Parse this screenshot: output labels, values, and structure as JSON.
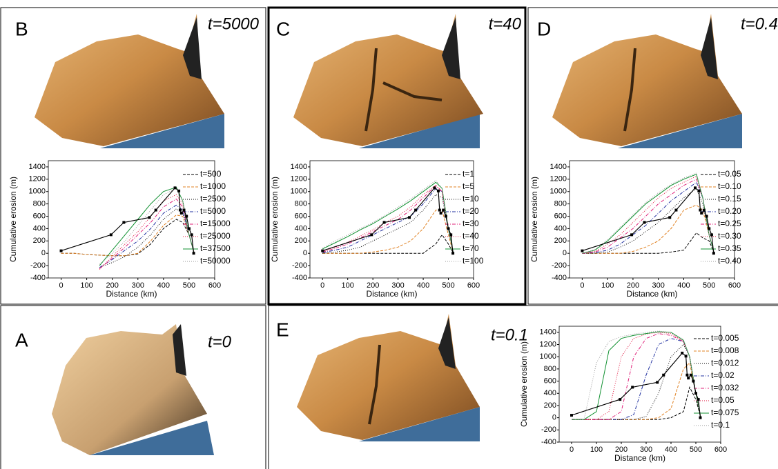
{
  "panels": [
    {
      "label": "B",
      "time": "t=5000"
    },
    {
      "label": "C",
      "time": "t=40"
    },
    {
      "label": "D",
      "time": "t=0.4"
    },
    {
      "label": "A",
      "time": "t=0"
    },
    {
      "label": "E",
      "time": "t=0.1"
    }
  ],
  "chart_data": [
    {
      "type": "line",
      "xlabel": "Distance (km)",
      "ylabel": "Cumulative erosion (m)",
      "xlim": [
        -50,
        600
      ],
      "ylim": [
        -400,
        1500
      ],
      "xticks": [
        0,
        100,
        200,
        300,
        400,
        500,
        600
      ],
      "yticks": [
        -400,
        -200,
        0,
        200,
        400,
        600,
        800,
        1000,
        1200,
        1400
      ],
      "x": [
        0,
        50,
        100,
        150,
        200,
        250,
        300,
        350,
        400,
        450,
        475,
        500,
        520
      ],
      "series": [
        {
          "name": "t=500",
          "color": "#000000",
          "dash": "4,2",
          "values": [
            0,
            0,
            -20,
            -30,
            -40,
            -40,
            -10,
            150,
            400,
            550,
            500,
            300,
            0
          ]
        },
        {
          "name": "t=1000",
          "color": "#e08020",
          "dash": "4,2",
          "values": [
            0,
            0,
            -20,
            -30,
            -40,
            -40,
            0,
            200,
            450,
            620,
            600,
            300,
            0
          ]
        },
        {
          "name": "t=2500",
          "color": "#000000",
          "dash": "1,2",
          "values": [
            null,
            null,
            null,
            -230,
            -150,
            -50,
            100,
            300,
            550,
            720,
            650,
            300,
            0
          ]
        },
        {
          "name": "t=5000",
          "color": "#2030a0",
          "dash": "5,2,1,2",
          "values": [
            null,
            null,
            null,
            -230,
            -100,
            50,
            200,
            400,
            650,
            780,
            700,
            300,
            0
          ]
        },
        {
          "name": "t=15000",
          "color": "#e0207a",
          "dash": "5,2,1,2",
          "values": [
            null,
            null,
            null,
            -250,
            -80,
            100,
            300,
            500,
            750,
            880,
            750,
            300,
            0
          ]
        },
        {
          "name": "t=25000",
          "color": "#e0103a",
          "dash": "1,2",
          "values": [
            null,
            null,
            null,
            -260,
            -50,
            150,
            350,
            600,
            850,
            950,
            800,
            300,
            0
          ]
        },
        {
          "name": "t=37500",
          "color": "#109030",
          "dash": "",
          "values": [
            null,
            null,
            null,
            -200,
            50,
            300,
            550,
            800,
            1000,
            1070,
            850,
            300,
            0
          ]
        },
        {
          "name": "t=50000",
          "color": "#999999",
          "dash": "1,2",
          "values": [
            null,
            null,
            null,
            -180,
            0,
            200,
            450,
            700,
            950,
            1050,
            850,
            300,
            0
          ]
        },
        {
          "color": "#000000",
          "dash": "",
          "marker": "square",
          "x": [
            0,
            195,
            245,
            345,
            370,
            445,
            460,
            465,
            470,
            480,
            490,
            500,
            510,
            518
          ],
          "values": [
            40,
            300,
            500,
            580,
            700,
            1060,
            1010,
            700,
            650,
            700,
            600,
            400,
            300,
            0
          ]
        }
      ]
    },
    {
      "type": "line",
      "xlabel": "Distance (km)",
      "ylabel": "Cumulative erosion (m)",
      "xlim": [
        -50,
        600
      ],
      "ylim": [
        -400,
        1500
      ],
      "xticks": [
        0,
        100,
        200,
        300,
        400,
        500,
        600
      ],
      "yticks": [
        -400,
        -200,
        0,
        200,
        400,
        600,
        800,
        1000,
        1200,
        1400
      ],
      "x": [
        0,
        50,
        100,
        150,
        200,
        250,
        300,
        350,
        400,
        450,
        475,
        500,
        520
      ],
      "series": [
        {
          "name": "t=1",
          "color": "#000000",
          "dash": "4,2",
          "values": [
            0,
            0,
            0,
            0,
            0,
            0,
            0,
            0,
            0,
            150,
            300,
            150,
            0
          ]
        },
        {
          "name": "t=5",
          "color": "#e08020",
          "dash": "4,2",
          "values": [
            0,
            0,
            0,
            0,
            20,
            50,
            100,
            200,
            400,
            700,
            700,
            300,
            0
          ]
        },
        {
          "name": "t=10",
          "color": "#000000",
          "dash": "1,2",
          "values": [
            0,
            20,
            50,
            100,
            200,
            300,
            400,
            500,
            700,
            950,
            900,
            400,
            0
          ]
        },
        {
          "name": "t=20",
          "color": "#2030a0",
          "dash": "5,2,1,2",
          "values": [
            10,
            50,
            100,
            200,
            300,
            400,
            500,
            600,
            800,
            1050,
            1000,
            400,
            0
          ]
        },
        {
          "name": "t=30",
          "color": "#e0207a",
          "dash": "5,2,1,2",
          "values": [
            20,
            80,
            150,
            250,
            350,
            450,
            550,
            700,
            900,
            1100,
            1000,
            400,
            0
          ]
        },
        {
          "name": "t=40",
          "color": "#e0103a",
          "dash": "1,2",
          "values": [
            30,
            100,
            180,
            280,
            380,
            500,
            600,
            750,
            950,
            1100,
            1000,
            400,
            0
          ]
        },
        {
          "name": "t=70",
          "color": "#109030",
          "dash": "",
          "values": [
            70,
            170,
            270,
            380,
            480,
            600,
            720,
            850,
            1000,
            1150,
            1050,
            400,
            0
          ]
        },
        {
          "name": "t=100",
          "color": "#999999",
          "dash": "1,2",
          "values": [
            80,
            200,
            300,
            400,
            500,
            620,
            750,
            880,
            1030,
            1180,
            1050,
            400,
            0
          ]
        },
        {
          "color": "#000000",
          "dash": "",
          "marker": "square",
          "x": [
            0,
            195,
            245,
            345,
            370,
            445,
            460,
            465,
            470,
            480,
            490,
            500,
            510,
            518
          ],
          "values": [
            40,
            300,
            500,
            580,
            700,
            1060,
            1010,
            700,
            650,
            700,
            600,
            400,
            300,
            0
          ]
        }
      ]
    },
    {
      "type": "line",
      "xlabel": "Distance (km)",
      "ylabel": "Cumulative erosion (m)",
      "xlim": [
        -50,
        600
      ],
      "ylim": [
        -400,
        1500
      ],
      "xticks": [
        0,
        100,
        200,
        300,
        400,
        500,
        600
      ],
      "yticks": [
        -400,
        -200,
        0,
        200,
        400,
        600,
        800,
        1000,
        1200,
        1400
      ],
      "x": [
        0,
        50,
        100,
        150,
        200,
        250,
        300,
        350,
        400,
        450,
        475,
        500,
        520
      ],
      "series": [
        {
          "name": "t=0.05",
          "color": "#000000",
          "dash": "4,2",
          "values": [
            0,
            0,
            0,
            0,
            0,
            0,
            0,
            20,
            50,
            330,
            250,
            200,
            0
          ]
        },
        {
          "name": "t=0.10",
          "color": "#e08020",
          "dash": "4,2",
          "values": [
            0,
            0,
            0,
            0,
            30,
            100,
            200,
            400,
            700,
            780,
            700,
            300,
            0
          ]
        },
        {
          "name": "t=0.15",
          "color": "#000000",
          "dash": "1,2",
          "values": [
            0,
            0,
            20,
            100,
            200,
            350,
            500,
            700,
            900,
            1050,
            800,
            300,
            0
          ]
        },
        {
          "name": "t=0.20",
          "color": "#2030a0",
          "dash": "5,2,1,2",
          "values": [
            0,
            10,
            50,
            150,
            300,
            450,
            650,
            850,
            1000,
            1150,
            900,
            300,
            0
          ]
        },
        {
          "name": "t=0.25",
          "color": "#e0207a",
          "dash": "5,2,1,2",
          "values": [
            0,
            20,
            100,
            250,
            400,
            600,
            800,
            950,
            1100,
            1200,
            900,
            300,
            0
          ]
        },
        {
          "name": "t=0.30",
          "color": "#e0103a",
          "dash": "1,2",
          "values": [
            0,
            30,
            150,
            300,
            500,
            700,
            900,
            1050,
            1150,
            1250,
            900,
            300,
            0
          ]
        },
        {
          "name": "t=0.35",
          "color": "#109030",
          "dash": "",
          "values": [
            0,
            50,
            200,
            400,
            600,
            800,
            950,
            1100,
            1200,
            1280,
            900,
            300,
            0
          ]
        },
        {
          "name": "t=0.40",
          "color": "#999999",
          "dash": "1,2",
          "values": [
            0,
            60,
            220,
            420,
            620,
            820,
            980,
            1120,
            1220,
            1300,
            900,
            300,
            0
          ]
        },
        {
          "color": "#000000",
          "dash": "",
          "marker": "square",
          "x": [
            0,
            195,
            245,
            345,
            370,
            445,
            460,
            465,
            470,
            480,
            490,
            500,
            510,
            518
          ],
          "values": [
            40,
            300,
            500,
            580,
            700,
            1060,
            1010,
            700,
            650,
            700,
            600,
            400,
            300,
            0
          ]
        }
      ]
    },
    {
      "type": "line",
      "xlabel": "Distance (km)",
      "ylabel": "Cumulative erosion (m)",
      "xlim": [
        -50,
        600
      ],
      "ylim": [
        -400,
        1500
      ],
      "xticks": [
        0,
        100,
        200,
        300,
        400,
        500,
        600
      ],
      "yticks": [
        -400,
        -200,
        0,
        200,
        400,
        600,
        800,
        1000,
        1200,
        1400
      ],
      "x": [
        0,
        50,
        100,
        150,
        200,
        250,
        300,
        350,
        400,
        450,
        475,
        500,
        520
      ],
      "series": [
        {
          "name": "t=0.005",
          "color": "#000000",
          "dash": "4,2",
          "values": [
            -30,
            -30,
            -30,
            -30,
            -30,
            -30,
            -30,
            -30,
            0,
            100,
            500,
            300,
            0
          ]
        },
        {
          "name": "t=0.008",
          "color": "#e08020",
          "dash": "4,2",
          "values": [
            -30,
            -30,
            -30,
            -30,
            -30,
            -30,
            -30,
            0,
            150,
            800,
            900,
            400,
            0
          ]
        },
        {
          "name": "t=0.012",
          "color": "#000000",
          "dash": "1,2",
          "values": [
            -30,
            -30,
            -30,
            -30,
            -30,
            -30,
            20,
            400,
            1000,
            1200,
            1000,
            400,
            0
          ]
        },
        {
          "name": "t=0.02",
          "color": "#2030a0",
          "dash": "5,2,1,2",
          "values": [
            -30,
            -30,
            -30,
            -30,
            -30,
            50,
            700,
            1200,
            1300,
            1250,
            1000,
            400,
            0
          ]
        },
        {
          "name": "t=0.032",
          "color": "#e0207a",
          "dash": "5,2,1,2",
          "values": [
            -30,
            -30,
            -30,
            -30,
            100,
            1000,
            1300,
            1380,
            1350,
            1250,
            1000,
            400,
            0
          ]
        },
        {
          "name": "t=0.05",
          "color": "#e0103a",
          "dash": "1,2",
          "values": [
            -30,
            -30,
            -30,
            100,
            1000,
            1300,
            1370,
            1400,
            1380,
            1250,
            1000,
            400,
            0
          ]
        },
        {
          "name": "t=0.075",
          "color": "#109030",
          "dash": "",
          "values": [
            -30,
            -30,
            100,
            1100,
            1300,
            1350,
            1380,
            1410,
            1400,
            1270,
            1000,
            400,
            0
          ]
        },
        {
          "name": "t=0.1",
          "color": "#999999",
          "dash": "1,2",
          "values": [
            -30,
            -30,
            900,
            1250,
            1330,
            1370,
            1400,
            1420,
            1400,
            1280,
            1000,
            400,
            0
          ]
        },
        {
          "color": "#000000",
          "dash": "",
          "marker": "square",
          "x": [
            0,
            195,
            245,
            345,
            370,
            445,
            460,
            465,
            470,
            480,
            490,
            500,
            510,
            518
          ],
          "values": [
            40,
            300,
            500,
            580,
            700,
            1060,
            1010,
            700,
            650,
            700,
            600,
            400,
            300,
            0
          ]
        }
      ]
    }
  ]
}
